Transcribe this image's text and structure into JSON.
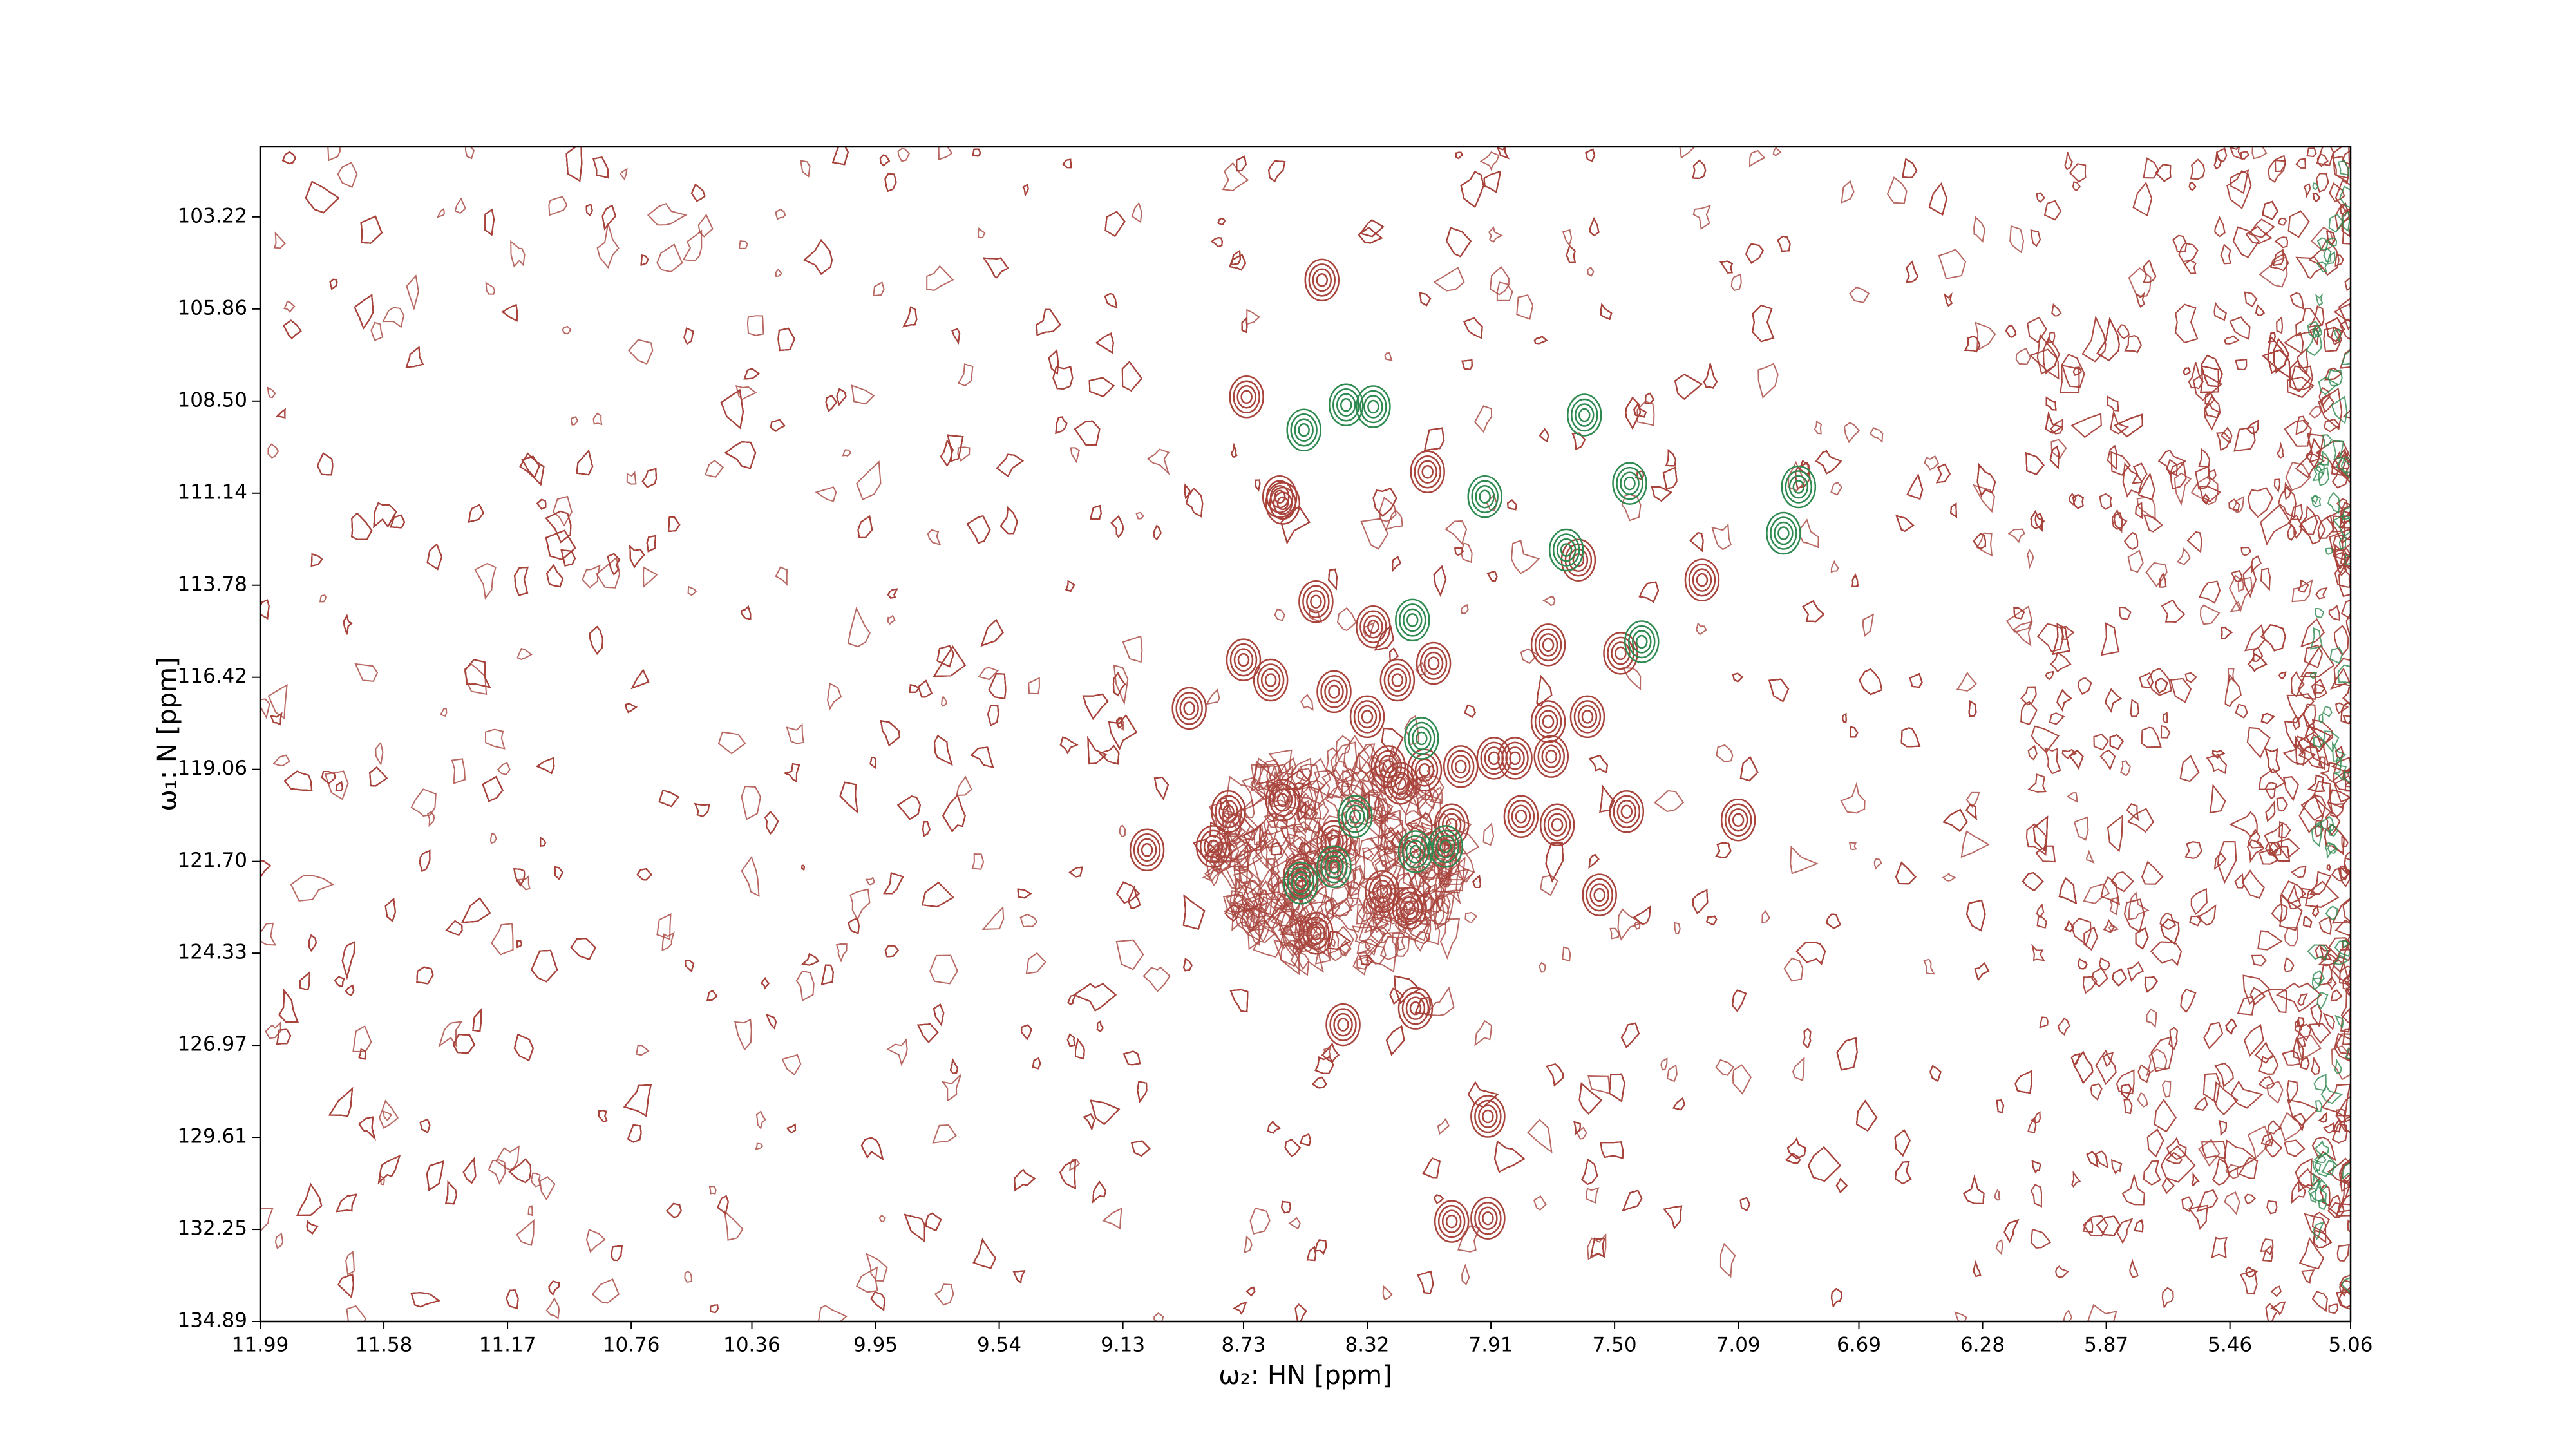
{
  "chart_data": {
    "type": "contour",
    "xlabel": "ω₂: HN [ppm]",
    "ylabel": "ω₁: N [ppm]",
    "xlim": [
      11.99,
      5.06
    ],
    "ylim": [
      134.89,
      101.21
    ],
    "xticks": [
      11.99,
      11.58,
      11.17,
      10.76,
      10.36,
      9.95,
      9.54,
      9.13,
      8.73,
      8.32,
      7.91,
      {
        "value": 7.5,
        "label": "7.50"
      },
      7.09,
      6.69,
      6.28,
      5.87,
      5.46,
      5.06
    ],
    "yticks": [
      103.22,
      105.86,
      {
        "value": 108.5,
        "label": "108.50"
      },
      111.14,
      113.78,
      116.42,
      119.06,
      {
        "value": 121.7,
        "label": "121.70"
      },
      124.33,
      126.97,
      129.61,
      132.25,
      134.89
    ],
    "series": [
      {
        "color": "#a8443c",
        "x": [
          8.47,
          8.72,
          8.12,
          8.6,
          8.49,
          8.3,
          8.73,
          8.64,
          8.22,
          8.1,
          8.91,
          8.43,
          8.32,
          7.72,
          7.59,
          8.25,
          8.13,
          8.01,
          7.9,
          7.83,
          7.71,
          8.78,
          8.6,
          8.21,
          8.04,
          7.81,
          7.69,
          7.46,
          7.09,
          9.05,
          8.83,
          8.43,
          8.27,
          8.18,
          7.55,
          8.54,
          8.49,
          8.16,
          8.4,
          8.04,
          7.92,
          7.92,
          7.62,
          7.21,
          7.72,
          7.48,
          8.61
        ],
        "y": [
          105.03,
          108.38,
          110.53,
          111.43,
          114.25,
          114.97,
          115.92,
          116.5,
          116.5,
          116.02,
          117.31,
          116.83,
          117.55,
          117.69,
          117.55,
          118.98,
          119.08,
          118.98,
          118.74,
          118.74,
          118.69,
          120.27,
          119.94,
          119.46,
          120.65,
          120.41,
          120.65,
          120.27,
          120.51,
          121.37,
          121.27,
          121.13,
          122.56,
          123.04,
          122.66,
          122.09,
          123.76,
          125.91,
          126.38,
          132.02,
          131.93,
          129.01,
          113.06,
          113.63,
          115.49,
          115.73,
          111.24
        ]
      },
      {
        "color": "#2e8a50",
        "x": [
          8.39,
          8.3,
          8.53,
          7.6,
          7.93,
          8.17,
          7.41,
          8.14,
          8.36,
          8.16,
          8.06,
          8.43,
          8.54,
          7.66,
          6.94,
          6.89,
          7.45
        ],
        "y": [
          108.61,
          108.66,
          109.33,
          108.9,
          111.24,
          114.78,
          115.4,
          118.17,
          120.41,
          121.42,
          121.27,
          121.85,
          122.32,
          112.77,
          112.29,
          110.96,
          110.86
        ]
      }
    ]
  }
}
